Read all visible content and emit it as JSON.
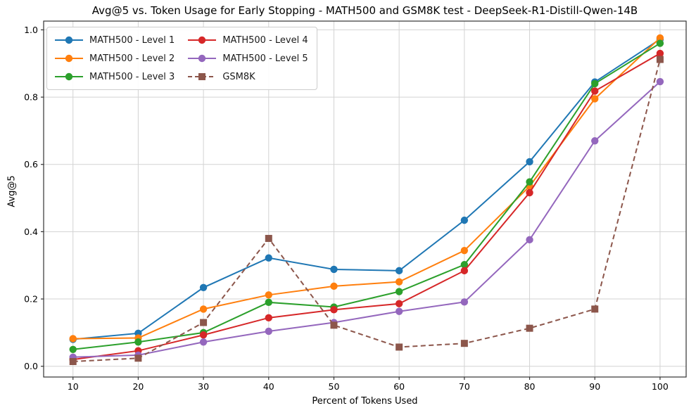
{
  "title": "Avg@5 vs. Token Usage for Early Stopping - MATH500 and GSM8K test - DeepSeek-R1-Distill-Qwen-14B",
  "chart_data": {
    "type": "line",
    "title": "Avg@5 vs. Token Usage for Early Stopping - MATH500 and GSM8K test - DeepSeek-R1-Distill-Qwen-14B",
    "xlabel": "Percent of Tokens Used",
    "ylabel": "Avg@5",
    "x": [
      10,
      20,
      30,
      40,
      50,
      60,
      70,
      80,
      90,
      100
    ],
    "xtick_labels": [
      "10",
      "20",
      "30",
      "40",
      "50",
      "60",
      "70",
      "80",
      "90",
      "100"
    ],
    "yticks": [
      0.0,
      0.2,
      0.4,
      0.6,
      0.8,
      1.0
    ],
    "ytick_labels": [
      "0.0",
      "0.2",
      "0.4",
      "0.6",
      "0.8",
      "1.0"
    ],
    "xlim": [
      5.5,
      104
    ],
    "ylim": [
      -0.032,
      1.026
    ],
    "grid": true,
    "legend_position": "upper-left",
    "series": [
      {
        "name": "MATH500 - Level 1",
        "color": "#1f77b4",
        "marker": "circle",
        "line_style": "solid",
        "values": [
          0.08,
          0.098,
          0.234,
          0.322,
          0.288,
          0.284,
          0.434,
          0.608,
          0.845,
          0.972
        ]
      },
      {
        "name": "MATH500 - Level 2",
        "color": "#ff7f0e",
        "marker": "circle",
        "line_style": "solid",
        "values": [
          0.082,
          0.084,
          0.17,
          0.212,
          0.238,
          0.251,
          0.344,
          0.535,
          0.795,
          0.976
        ]
      },
      {
        "name": "MATH500 - Level 3",
        "color": "#2ca02c",
        "marker": "circle",
        "line_style": "solid",
        "values": [
          0.05,
          0.072,
          0.1,
          0.19,
          0.176,
          0.222,
          0.302,
          0.548,
          0.84,
          0.96
        ]
      },
      {
        "name": "MATH500 - Level 4",
        "color": "#d62728",
        "marker": "circle",
        "line_style": "solid",
        "values": [
          0.02,
          0.046,
          0.093,
          0.144,
          0.168,
          0.186,
          0.284,
          0.516,
          0.818,
          0.93
        ]
      },
      {
        "name": "MATH500 - Level 5",
        "color": "#9467bd",
        "marker": "circle",
        "line_style": "solid",
        "values": [
          0.027,
          0.033,
          0.072,
          0.104,
          0.13,
          0.163,
          0.191,
          0.376,
          0.67,
          0.846
        ]
      },
      {
        "name": "GSM8K",
        "color": "#8c564b",
        "marker": "square",
        "line_style": "dashed",
        "values": [
          0.014,
          0.024,
          0.13,
          0.38,
          0.122,
          0.057,
          0.068,
          0.113,
          0.17,
          0.912
        ]
      }
    ]
  },
  "colors": {
    "grid": "#d3d3d3",
    "spine": "#333333",
    "background": "#ffffff"
  }
}
